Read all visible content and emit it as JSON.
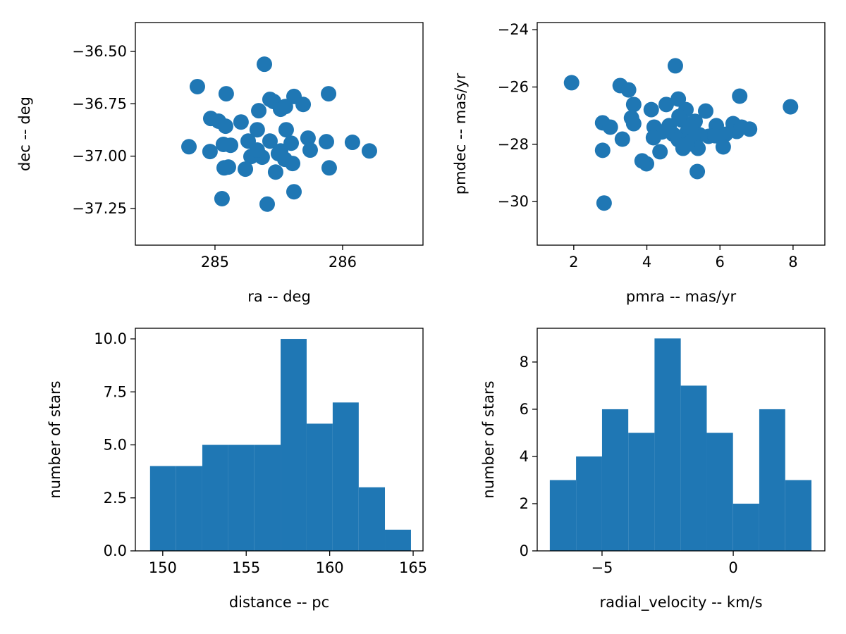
{
  "chart_data": [
    {
      "type": "scatter",
      "xlabel": "ra  --  deg",
      "ylabel": "dec  --  deg",
      "color": "#1f77b4",
      "x": [
        285.387,
        284.862,
        285.088,
        285.89,
        285.431,
        285.459,
        285.619,
        285.691,
        285.514,
        285.343,
        285.552,
        284.967,
        285.028,
        285.083,
        285.204,
        285.331,
        285.558,
        285.26,
        285.729,
        285.873,
        286.077,
        286.21,
        284.796,
        284.961,
        285.066,
        285.122,
        285.431,
        285.597,
        285.746,
        285.282,
        285.37,
        285.514,
        285.547,
        285.608,
        285.072,
        285.105,
        285.238,
        285.475,
        285.895,
        285.619,
        285.055,
        285.409,
        285.497,
        285.331
      ],
      "values": [
        -36.561,
        -36.668,
        -36.702,
        -36.702,
        -36.729,
        -36.739,
        -36.715,
        -36.753,
        -36.776,
        -36.783,
        -36.763,
        -36.82,
        -36.833,
        -36.857,
        -36.837,
        -36.874,
        -36.874,
        -36.928,
        -36.914,
        -36.931,
        -36.934,
        -36.975,
        -36.955,
        -36.978,
        -36.944,
        -36.948,
        -36.928,
        -36.938,
        -36.971,
        -37.002,
        -37.005,
        -36.975,
        -37.015,
        -37.035,
        -37.056,
        -37.052,
        -37.062,
        -37.076,
        -37.056,
        -37.17,
        -37.203,
        -37.229,
        -36.988,
        -36.971
      ],
      "xlim": [
        284.376,
        286.63
      ],
      "xticks": [
        285,
        286
      ],
      "ylim": [
        -37.425,
        -36.362
      ],
      "yticks": [
        {
          "value": -36.5,
          "label": "−36.50"
        },
        {
          "value": -36.75,
          "label": "−36.75"
        },
        {
          "value": -37.0,
          "label": "−37.00"
        },
        {
          "value": -37.25,
          "label": "−37.25"
        }
      ]
    },
    {
      "type": "scatter",
      "xlabel": "pmra  --  mas/yr",
      "ylabel": "pmdec  --  mas/yr",
      "color": "#1f77b4",
      "x": [
        1.94,
        3.27,
        3.5,
        4.78,
        6.54,
        7.93,
        3.64,
        4.12,
        4.53,
        4.86,
        5.07,
        5.61,
        2.79,
        3.0,
        3.58,
        3.64,
        4.2,
        4.61,
        4.95,
        5.32,
        5.9,
        6.36,
        6.46,
        6.81,
        4.41,
        4.72,
        5.09,
        5.44,
        5.69,
        4.18,
        4.86,
        5.26,
        5.86,
        6.15,
        2.79,
        3.33,
        4.99,
        5.4,
        6.09,
        4.99,
        3.99,
        3.87,
        4.36,
        5.11,
        2.83,
        5.38,
        4.88,
        6.59,
        5.2
      ],
      "values": [
        -25.85,
        -25.95,
        -26.1,
        -25.26,
        -26.32,
        -26.69,
        -26.61,
        -26.79,
        -26.61,
        -26.42,
        -26.79,
        -26.84,
        -27.25,
        -27.4,
        -27.08,
        -27.28,
        -27.4,
        -27.35,
        -27.15,
        -27.2,
        -27.35,
        -27.28,
        -27.55,
        -27.47,
        -27.57,
        -27.65,
        -27.6,
        -27.67,
        -27.72,
        -27.77,
        -27.84,
        -27.82,
        -27.7,
        -27.65,
        -28.21,
        -27.82,
        -28.14,
        -28.14,
        -28.09,
        -28.04,
        -28.68,
        -28.58,
        -28.26,
        -28.01,
        -30.05,
        -28.95,
        -27.03,
        -27.4,
        -27.4
      ],
      "xlim": [
        1.0,
        8.87
      ],
      "xticks": [
        2,
        4,
        6,
        8
      ],
      "ylim": [
        -31.52,
        -23.75
      ],
      "yticks": [
        {
          "value": -24,
          "label": "−24"
        },
        {
          "value": -26,
          "label": "−26"
        },
        {
          "value": -28,
          "label": "−28"
        },
        {
          "value": -30,
          "label": "−30"
        }
      ]
    },
    {
      "type": "histogram",
      "xlabel": "distance  --  pc",
      "ylabel": "number of stars",
      "color": "#1f77b4",
      "bins": [
        149.24,
        150.8,
        152.37,
        153.93,
        155.49,
        157.06,
        158.62,
        160.18,
        161.74,
        163.31,
        164.87
      ],
      "values": [
        4,
        4,
        5,
        5,
        5,
        10,
        6,
        7,
        3,
        1
      ],
      "xlim": [
        148.36,
        165.59
      ],
      "xticks": [
        150,
        155,
        160,
        165
      ],
      "ylim": [
        0,
        10.5
      ],
      "yticks": [
        {
          "value": 0,
          "label": "0.0"
        },
        2.5,
        {
          "value": 5,
          "label": "5.0"
        },
        7.5,
        {
          "value": 10,
          "label": "10.0"
        }
      ]
    },
    {
      "type": "histogram",
      "xlabel": "radial_velocity  --  km/s",
      "ylabel": "number of stars",
      "color": "#1f77b4",
      "bins": [
        -6.99,
        -5.99,
        -5.0,
        -4.0,
        -3.0,
        -2.0,
        -1.01,
        -0.01,
        0.99,
        1.98,
        2.98
      ],
      "values": [
        3,
        4,
        6,
        5,
        9,
        7,
        5,
        2,
        6,
        3
      ],
      "xlim": [
        -7.47,
        3.49
      ],
      "xticks": [
        {
          "value": -5,
          "label": "−5"
        },
        0
      ],
      "ylim": [
        0,
        9.43
      ],
      "yticks": [
        0,
        2,
        4,
        6,
        8
      ]
    }
  ]
}
